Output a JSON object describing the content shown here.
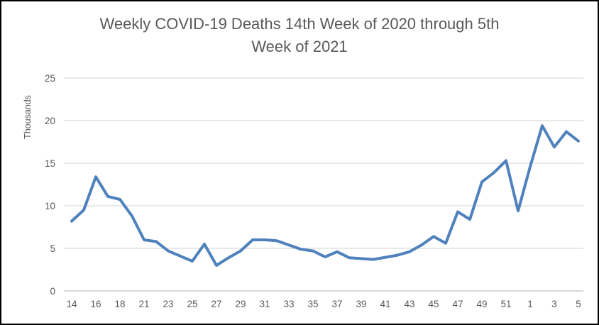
{
  "title": {
    "line1": "Weekly COVID-19 Deaths 14th Week of 2020 through 5th",
    "line2": "Week of 2021"
  },
  "chart_data": {
    "type": "line",
    "title": "Weekly COVID-19 Deaths 14th Week of 2020 through 5th Week of 2021",
    "xlabel": "",
    "ylabel": "Thousands",
    "ylim": [
      0,
      25
    ],
    "yticks": [
      0,
      5,
      10,
      15,
      20,
      25
    ],
    "grid": true,
    "legend": "none",
    "line_color": "#4F81BD",
    "gridline_color": "#D9D9D9",
    "axis_line_color": "#BFBFBF",
    "axis_text_color": "#595959",
    "categories": [
      "14",
      "15",
      "16",
      "17",
      "18",
      "20",
      "21",
      "22",
      "23",
      "24",
      "25",
      "26",
      "27",
      "28",
      "29",
      "30",
      "31",
      "32",
      "33",
      "34",
      "35",
      "36",
      "37",
      "38",
      "39",
      "40",
      "41",
      "42",
      "43",
      "44",
      "45",
      "46",
      "47",
      "48",
      "49",
      "50",
      "51",
      "52",
      "1",
      "2",
      "3",
      "4",
      "5"
    ],
    "values": [
      8.2,
      9.5,
      13.4,
      11.1,
      10.75,
      8.8,
      6.0,
      5.8,
      4.7,
      4.1,
      3.5,
      5.5,
      3.0,
      3.9,
      4.7,
      6.0,
      6.0,
      5.9,
      5.4,
      4.9,
      4.7,
      4.0,
      4.6,
      3.9,
      3.8,
      3.7,
      3.95,
      4.2,
      4.6,
      5.4,
      6.4,
      5.6,
      9.3,
      8.4,
      12.8,
      13.9,
      15.3,
      9.4,
      14.6,
      19.4,
      16.9,
      18.7,
      17.6
    ],
    "x_tick_labels": [
      "14",
      "16",
      "18",
      "21",
      "23",
      "25",
      "27",
      "29",
      "31",
      "33",
      "35",
      "37",
      "39",
      "41",
      "43",
      "45",
      "47",
      "49",
      "51",
      "1",
      "3",
      "5"
    ],
    "x_tick_every": 2
  }
}
